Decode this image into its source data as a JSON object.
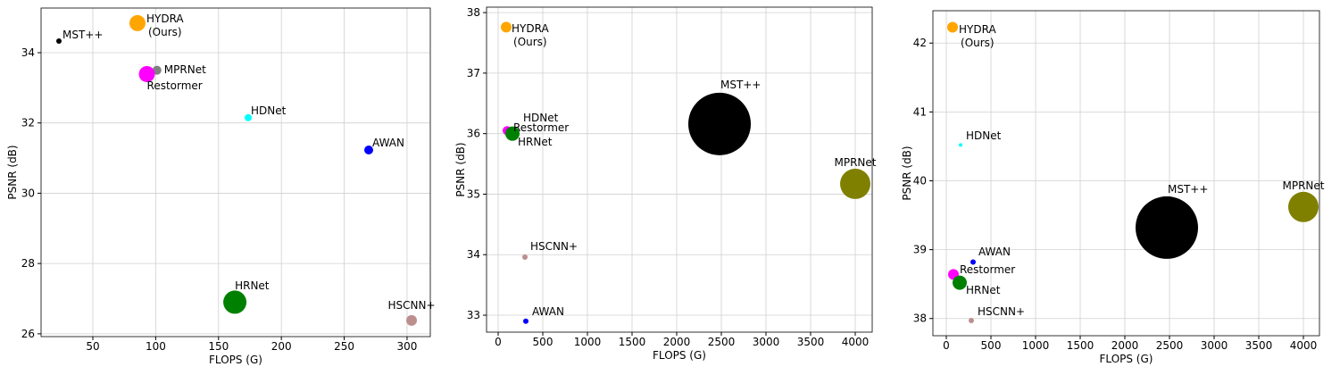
{
  "chart_data": [
    {
      "type": "scatter",
      "xlabel": "FLOPS (G)",
      "ylabel": "PSNR (dB)",
      "grid": true,
      "labels": [
        "MST++",
        "HYDRA\n(Ours)",
        "MPRNet",
        "Restormer",
        "HDNet",
        "AWAN",
        "HRNet",
        "HSCNN+"
      ],
      "x": [
        23,
        85.5,
        101,
        93,
        173.6,
        269.5,
        163,
        303.6
      ],
      "values": [
        34.33,
        34.84,
        33.5,
        33.39,
        32.15,
        31.23,
        26.9,
        26.38
      ],
      "sizes": [
        9,
        81,
        25,
        81,
        16,
        25,
        169,
        36
      ],
      "colors": [
        "#000000",
        "#ffa500",
        "#808080",
        "#ff00ff",
        "#00ffff",
        "#0000ff",
        "#008000",
        "#bc8f8f"
      ],
      "xlim": [
        8.8,
        318.5
      ],
      "ylim": [
        25.92,
        35.27
      ],
      "xticks": [
        50,
        100,
        150,
        200,
        250,
        300
      ],
      "yticks": [
        26,
        28,
        30,
        32,
        34
      ]
    },
    {
      "type": "scatter",
      "xlabel": "FLOPS (G)",
      "ylabel": "PSNR (dB)",
      "grid": true,
      "labels": [
        "HYDRA\n(Ours)",
        "Restormer",
        "HDNet",
        "HRNet",
        "MST++",
        "MPRNet",
        "HSCNN+",
        "AWAN"
      ],
      "x": [
        90,
        100,
        170,
        160,
        2480,
        4000,
        300,
        310
      ],
      "values": [
        37.76,
        36.05,
        36.05,
        36.0,
        36.16,
        35.17,
        33.96,
        32.9
      ],
      "sizes": [
        36,
        25,
        4,
        64,
        1225,
        289,
        9,
        9
      ],
      "colors": [
        "#ffa500",
        "#ff00ff",
        "#00ffff",
        "#008000",
        "#000000",
        "#808000",
        "#bc8f8f",
        "#0000ff"
      ],
      "xlim": [
        -130,
        4190
      ],
      "ylim": [
        32.72,
        38.09
      ],
      "xticks": [
        0,
        500,
        1000,
        1500,
        2000,
        2500,
        3000,
        3500,
        4000
      ],
      "yticks": [
        33,
        34,
        35,
        36,
        37,
        38
      ]
    },
    {
      "type": "scatter",
      "xlabel": "FLOPS (G)",
      "ylabel": "PSNR (dB)",
      "grid": true,
      "labels": [
        "HYDRA\n(Ours)",
        "HDNet",
        "MST++",
        "MPRNet",
        "AWAN",
        "Restormer",
        "HRNet",
        "HSCNN+"
      ],
      "x": [
        70,
        160,
        2470,
        4000,
        300,
        80,
        150,
        280
      ],
      "values": [
        42.23,
        40.52,
        39.32,
        39.62,
        38.82,
        38.64,
        38.52,
        37.97
      ],
      "sizes": [
        36,
        4,
        1225,
        289,
        9,
        36,
        64,
        9
      ],
      "colors": [
        "#ffa500",
        "#00ffff",
        "#000000",
        "#808000",
        "#0000ff",
        "#ff00ff",
        "#008000",
        "#bc8f8f"
      ],
      "xlim": [
        -150,
        4180
      ],
      "ylim": [
        37.75,
        42.47
      ],
      "xticks": [
        0,
        500,
        1000,
        1500,
        2000,
        2500,
        3000,
        3500,
        4000
      ],
      "yticks": [
        38,
        39,
        40,
        41,
        42
      ]
    }
  ]
}
